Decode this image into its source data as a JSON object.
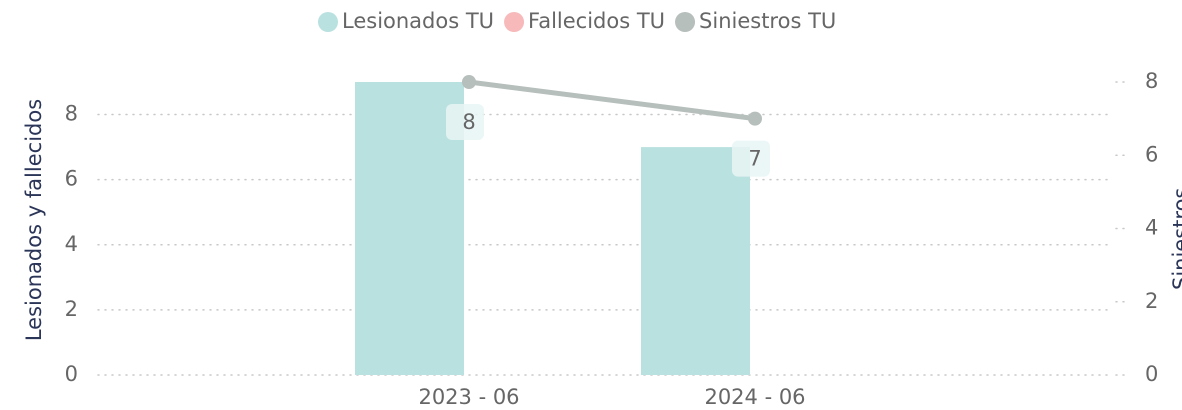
{
  "chart_data": {
    "type": "bar-line",
    "categories": [
      "2023 - 06",
      "2024 - 06"
    ],
    "series": [
      {
        "name": "Lesionados TU",
        "color": "#b9e1df",
        "values": [
          9,
          7
        ]
      },
      {
        "name": "Fallecidos TU",
        "color": "#f7b9b9",
        "values": [
          0,
          0
        ]
      },
      {
        "name": "Siniestros TU",
        "color": "#b6bfbb",
        "values": [
          8,
          7
        ],
        "axis": "y2",
        "type": "line"
      }
    ],
    "ylabel": "Lesionados y fallecidos",
    "y2label": "Siniestros",
    "ylim": [
      0,
      9
    ],
    "yticks": [
      0,
      2,
      4,
      6,
      8
    ],
    "y2lim": [
      0,
      8
    ],
    "y2ticks": [
      0,
      2,
      4,
      6,
      8
    ],
    "grid": true,
    "legend": "top"
  }
}
